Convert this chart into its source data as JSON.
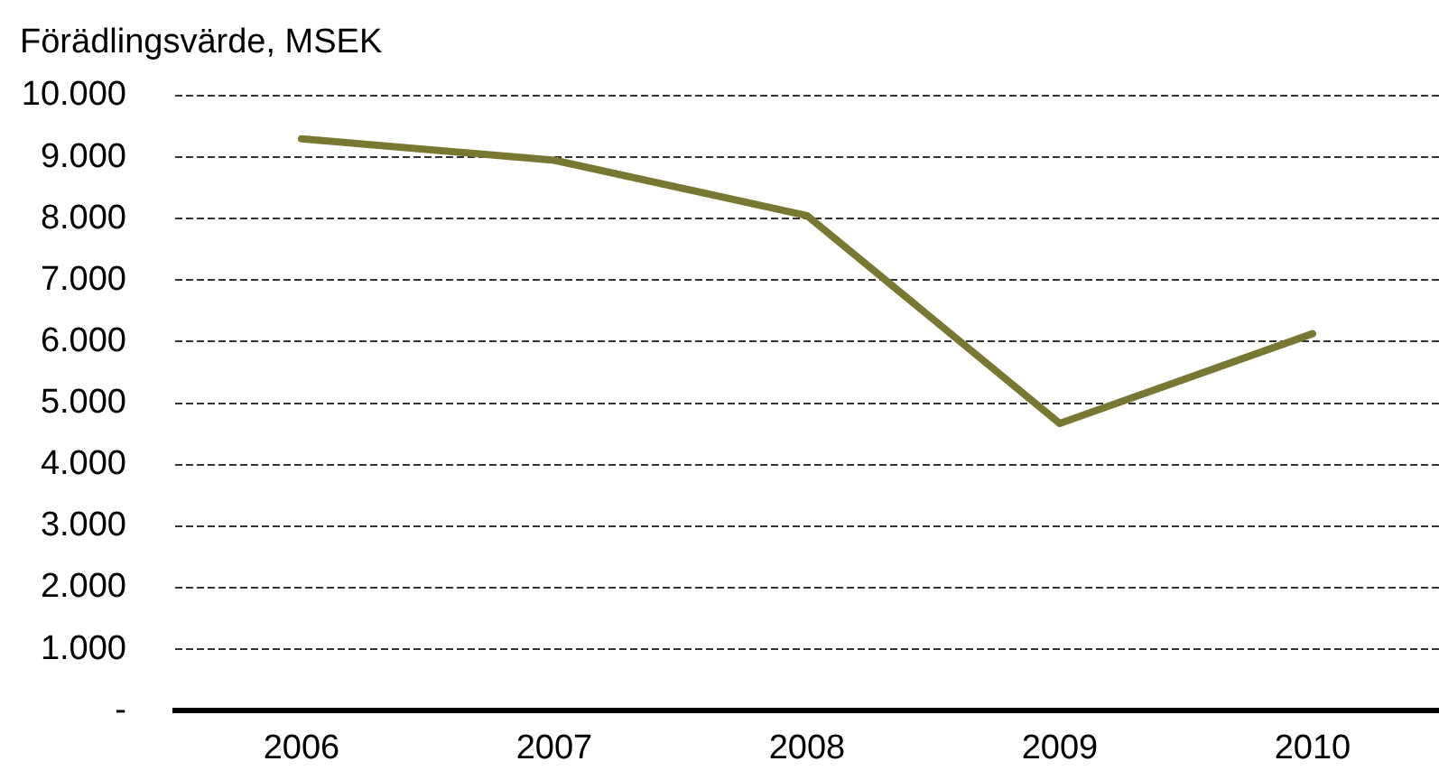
{
  "chart_data": {
    "type": "line",
    "title": "Förädlingsvärde, MSEK",
    "categories": [
      "2006",
      "2007",
      "2008",
      "2009",
      "2010"
    ],
    "series": [
      {
        "color": "#787832",
        "values": [
          9300,
          8950,
          8050,
          4670,
          6130
        ]
      }
    ],
    "ylim": [
      0,
      10000
    ],
    "yticks": [
      {
        "value": 0,
        "label": "-"
      },
      {
        "value": 1000,
        "label": "1.000"
      },
      {
        "value": 2000,
        "label": "2.000"
      },
      {
        "value": 3000,
        "label": "3.000"
      },
      {
        "value": 4000,
        "label": "4.000"
      },
      {
        "value": 5000,
        "label": "5.000"
      },
      {
        "value": 6000,
        "label": "6.000"
      },
      {
        "value": 7000,
        "label": "7.000"
      },
      {
        "value": 8000,
        "label": "8.000"
      },
      {
        "value": 9000,
        "label": "9.000"
      },
      {
        "value": 10000,
        "label": "10.000"
      }
    ],
    "grid": "y",
    "legend": false,
    "marker": "none",
    "line_style": "solid"
  }
}
